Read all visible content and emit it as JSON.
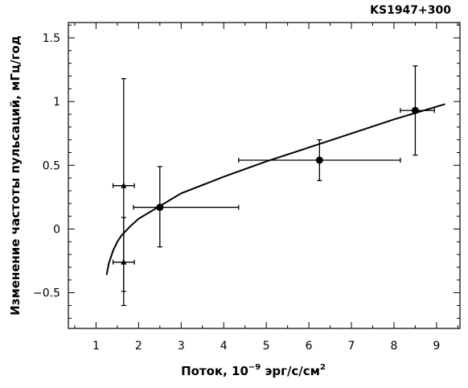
{
  "chart_data": {
    "type": "scatter",
    "title": "KS1947+300",
    "xlabel": "Поток, 10⁻⁹ эрг/с/см²",
    "xlabel_main": "Поток, 10",
    "xlabel_exp": "−9",
    "xlabel_unit": " эрг/с/см",
    "xlabel_sup": "2",
    "ylabel": "Изменение частоты пульсаций, мГц/год",
    "xlim": [
      0.35,
      9.55
    ],
    "ylim": [
      -0.78,
      1.62
    ],
    "x_ticks": [
      1,
      2,
      3,
      4,
      5,
      6,
      7,
      8,
      9
    ],
    "x_tick_labels": [
      "1",
      "2",
      "3",
      "4",
      "5",
      "6",
      "7",
      "8",
      "9"
    ],
    "y_ticks": [
      -0.5,
      0,
      0.5,
      1,
      1.5
    ],
    "y_tick_labels": [
      "−0.5",
      "0",
      "0.5",
      "1",
      "1.5"
    ],
    "series": [
      {
        "marker": "circle",
        "points": [
          {
            "x": 2.5,
            "y": 0.17,
            "xerr_low": 1.88,
            "xerr_high": 4.35,
            "yerr_low": -0.14,
            "yerr_high": 0.49
          },
          {
            "x": 6.25,
            "y": 0.54,
            "xerr_low": 4.35,
            "xerr_high": 8.15,
            "yerr_low": 0.38,
            "yerr_high": 0.7
          },
          {
            "x": 8.5,
            "y": 0.93,
            "xerr_low": 8.15,
            "xerr_high": 8.95,
            "yerr_low": 0.58,
            "yerr_high": 1.28
          }
        ]
      },
      {
        "marker": "triangle",
        "points": [
          {
            "x": 1.65,
            "y": 0.34,
            "xerr_low": 1.4,
            "xerr_high": 1.9,
            "yerr_low": -0.49,
            "yerr_high": 1.18
          },
          {
            "x": 1.65,
            "y": -0.26,
            "xerr_low": 1.4,
            "xerr_high": 1.9,
            "yerr_low": -0.6,
            "yerr_high": 0.09
          }
        ]
      }
    ],
    "fit_curve": {
      "x": [
        1.25,
        1.3,
        1.4,
        1.5,
        1.6,
        1.8,
        2.0,
        2.5,
        3.0,
        4.0,
        5.0,
        6.0,
        7.0,
        8.0,
        9.2
      ],
      "y": [
        -0.36,
        -0.27,
        -0.17,
        -0.1,
        -0.05,
        0.02,
        0.08,
        0.18,
        0.28,
        0.41,
        0.53,
        0.64,
        0.75,
        0.86,
        0.98
      ]
    },
    "grid": false,
    "legend": "none"
  }
}
